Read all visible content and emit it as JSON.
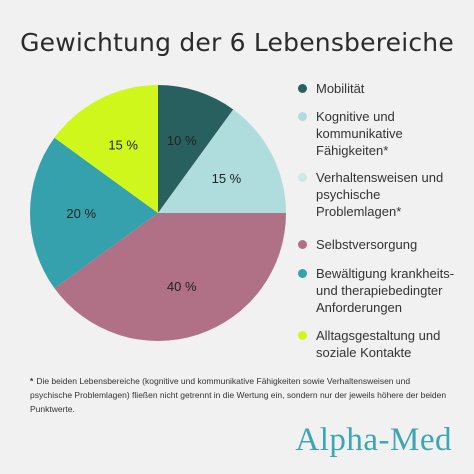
{
  "title": "Gewichtung der 6 Lebensbereiche",
  "chart_data": {
    "type": "pie",
    "start": "12 o'clock",
    "direction": "clockwise",
    "slices": [
      {
        "name": "Mobilität",
        "value": 10,
        "label": "10 %",
        "color": "#27605f"
      },
      {
        "name": "Kognitive und kommunikative Fähigkeiten*",
        "value": 15,
        "label": "15 %",
        "color": "#afdcdc"
      },
      {
        "name": "Verhaltensweisen und psychische Problemlagen*",
        "value": 0,
        "label": "",
        "color": "#cfe7e7"
      },
      {
        "name": "Selbstversorgung",
        "value": 40,
        "label": "40 %",
        "color": "#b07085"
      },
      {
        "name": "Bewältigung krankheits- und therapiebedingter Anforderungen",
        "value": 20,
        "label": "20 %",
        "color": "#35a1ac"
      },
      {
        "name": "Alltagsgestaltung und soziale Kontakte",
        "value": 15,
        "label": "15 %",
        "color": "#cff71c"
      }
    ]
  },
  "legend": [
    {
      "lines": [
        "Mobilität"
      ],
      "color": "#27605f"
    },
    {
      "lines": [
        "Kognitive und",
        "kommunikative",
        "Fähigkeiten*"
      ],
      "color": "#afdcdc"
    },
    {
      "lines": [
        "Verhaltensweisen und",
        "psychische",
        "Problemlagen*"
      ],
      "color": "#cfe7e7"
    },
    {
      "lines": [
        "Selbstversorgung"
      ],
      "color": "#b07085"
    },
    {
      "lines": [
        "Bewältigung krankheits-",
        "und therapiebedingter",
        "Anforderungen"
      ],
      "color": "#35a1ac"
    },
    {
      "lines": [
        "Alltagsgestaltung und",
        "soziale Kontakte"
      ],
      "color": "#cff71c"
    }
  ],
  "footnote": {
    "star": "*",
    "text": "Die beiden Lebensbereiche (kognitive und kommunikative Fähigkeiten sowie Verhaltensweisen und psychische Problemlagen) fließen nicht getrennt in die Wertung ein, sondern nur der jeweils höhere der beiden Punktwerte."
  },
  "brand": "Alpha-Med"
}
